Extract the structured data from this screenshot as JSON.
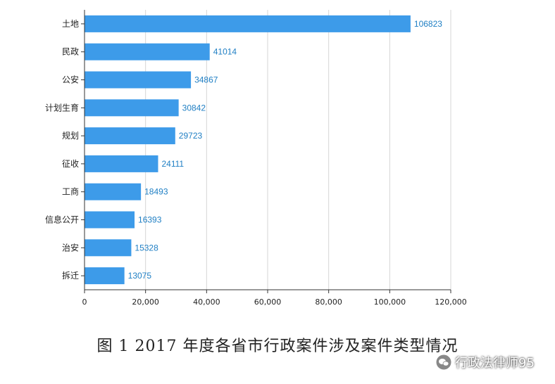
{
  "chart_data": {
    "type": "bar",
    "orientation": "horizontal",
    "categories": [
      "土地",
      "民政",
      "公安",
      "计划生育",
      "规划",
      "征收",
      "工商",
      "信息公开",
      "治安",
      "拆迁"
    ],
    "values": [
      106823,
      41014,
      34867,
      30842,
      29723,
      24111,
      18493,
      16393,
      15328,
      13075
    ],
    "x_ticks": [
      "0",
      "20,000",
      "40,000",
      "60,000",
      "80,000",
      "100,000",
      "120,000"
    ],
    "xlim": [
      0,
      120000
    ],
    "grid": true,
    "bar_color": "#3d9be9",
    "label_color": "#1f7fc4"
  },
  "caption": "图 1  2017 年度各省市行政案件涉及案件类型情况",
  "watermark": {
    "text": "行政法律师95",
    "icon": "wechat-icon"
  }
}
